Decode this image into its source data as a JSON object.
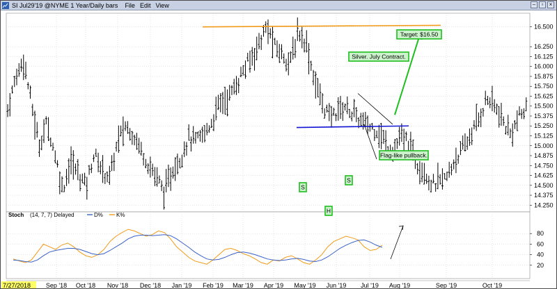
{
  "window": {
    "title": "SI  Jul29'19 @NYME  1 Year/Daily bars",
    "menus": [
      "File",
      "Edit",
      "View"
    ],
    "buttons": {
      "minimize": "–",
      "restore": "▫",
      "close": "×"
    }
  },
  "colors": {
    "bar": "#000000",
    "target_line": "#f29b18",
    "neckline": "#1313d6",
    "arrow": "#1dbf1d",
    "annotation_border": "#1dbf1d",
    "annotation_fill": "#ccf2cc",
    "k_line": "#f29b18",
    "d_line": "#3a62c8",
    "grid": "#c6cfd9",
    "date_highlight": "#ffff66"
  },
  "chart_data": [
    {
      "type": "ohlc",
      "price_axis": {
        "ticks": [
          "16.500",
          "16.250",
          "16.125",
          "16.000",
          "15.875",
          "15.750",
          "15.625",
          "15.500",
          "15.375",
          "15.250",
          "15.125",
          "15.000",
          "14.875",
          "14.750",
          "14.625",
          "14.500",
          "14.375",
          "14.250"
        ],
        "range": [
          14.2,
          16.62
        ]
      },
      "date_axis": {
        "labels": [
          "7/27/2018",
          "Sep '18",
          "Oct '18",
          "Nov '18",
          "Dec '18",
          "Jan '19",
          "Feb '19",
          "Mar '19",
          "Apr '19",
          "May '19",
          "Jun '19",
          "Jul '19",
          "Aug '19",
          "Sep '19",
          "Oct '19"
        ],
        "first_label_highlighted": true
      },
      "grid": true,
      "series_closes": [
        15.45,
        15.85,
        16.1,
        15.55,
        15.0,
        15.3,
        14.9,
        14.45,
        14.8,
        14.65,
        14.5,
        14.9,
        14.7,
        14.6,
        15.05,
        15.25,
        15.15,
        14.95,
        14.75,
        14.6,
        14.4,
        14.7,
        14.85,
        15.1,
        15.05,
        15.15,
        15.3,
        15.55,
        15.6,
        15.75,
        15.95,
        16.1,
        16.3,
        16.5,
        16.25,
        16.15,
        16.05,
        16.45,
        16.3,
        15.85,
        15.55,
        15.35,
        15.45,
        15.5,
        15.4,
        15.3,
        15.25,
        15.2,
        15.05,
        14.95,
        15.1,
        15.05,
        14.8,
        14.7,
        14.5,
        14.55,
        14.6,
        14.85,
        14.95,
        15.15,
        15.35,
        15.6,
        15.5,
        15.3,
        15.15,
        15.35,
        15.45
      ],
      "target_line": {
        "from": 16.5,
        "to": 16.52
      },
      "neckline": {
        "from": 15.23,
        "to": 15.25
      },
      "annotations": {
        "target": "Target: $16.50",
        "contract": "Silver. July Contract.",
        "flag": "Flag-like pullback.",
        "left_shoulder": "S",
        "head": "H",
        "right_shoulder": "S"
      }
    },
    {
      "type": "line",
      "title": "Stoch",
      "params": "(14, 7, 7) Delayed",
      "legend": [
        "D%",
        "K%"
      ],
      "y_ticks": [
        "80",
        "60",
        "40",
        "20"
      ],
      "range": [
        0,
        100
      ],
      "series": [
        {
          "name": "K%",
          "values": [
            32,
            28,
            25,
            30,
            45,
            60,
            55,
            50,
            58,
            62,
            55,
            45,
            38,
            35,
            40,
            50,
            65,
            75,
            82,
            88,
            85,
            80,
            75,
            78,
            85,
            82,
            70,
            55,
            45,
            35,
            28,
            25,
            22,
            30,
            40,
            50,
            52,
            48,
            42,
            38,
            32,
            25,
            22,
            30,
            28,
            35,
            38,
            32,
            25,
            22,
            30,
            40,
            55,
            65,
            70,
            75,
            72,
            68,
            55,
            48,
            50,
            58
          ]
        },
        {
          "name": "D%",
          "values": [
            30,
            29,
            27,
            26,
            30,
            38,
            45,
            48,
            50,
            52,
            52,
            50,
            46,
            42,
            40,
            42,
            48,
            55,
            62,
            70,
            75,
            77,
            77,
            76,
            77,
            78,
            76,
            70,
            62,
            54,
            45,
            38,
            32,
            30,
            31,
            35,
            40,
            44,
            45,
            43,
            40,
            36,
            32,
            30,
            29,
            30,
            32,
            33,
            31,
            28,
            27,
            30,
            36,
            44,
            52,
            58,
            63,
            67,
            68,
            64,
            58,
            54
          ]
        }
      ]
    }
  ]
}
